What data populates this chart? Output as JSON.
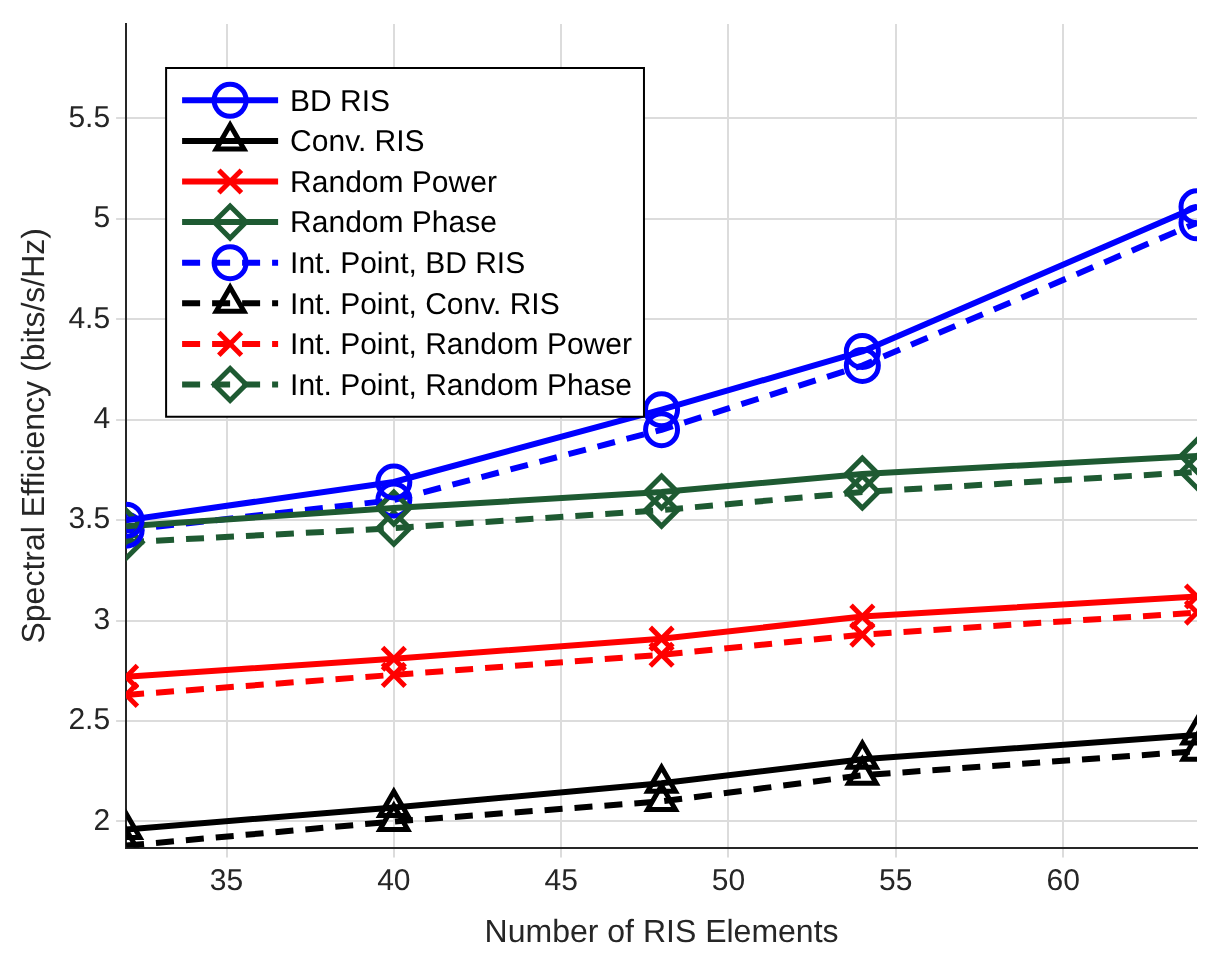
{
  "chart_data": {
    "type": "line",
    "xlabel": "Number of RIS Elements",
    "ylabel": "Spectral Efficiency (bits/s/Hz)",
    "x": [
      32,
      40,
      48,
      54,
      64
    ],
    "xlim": [
      32,
      64
    ],
    "xticks": [
      35,
      40,
      45,
      50,
      55,
      60
    ],
    "ylim": [
      1.87,
      5.97
    ],
    "yticks": [
      2,
      2.5,
      3,
      3.5,
      4,
      4.5,
      5,
      5.5
    ],
    "grid": true,
    "legend": "top left",
    "series": [
      {
        "name": "BD RIS",
        "color": "#0000ff",
        "marker": "circle",
        "line_style": "solid",
        "values": [
          3.5,
          3.69,
          4.05,
          4.34,
          5.06
        ]
      },
      {
        "name": "Conv. RIS",
        "color": "#000000",
        "marker": "triangle",
        "line_style": "solid",
        "values": [
          1.96,
          2.07,
          2.19,
          2.31,
          2.43
        ]
      },
      {
        "name": "Random Power",
        "color": "#ff0000",
        "marker": "cross",
        "line_style": "solid",
        "values": [
          2.72,
          2.81,
          2.91,
          3.02,
          3.12
        ]
      },
      {
        "name": "Random Phase",
        "color": "#1e5a32",
        "marker": "diamond",
        "line_style": "solid",
        "values": [
          3.47,
          3.56,
          3.64,
          3.73,
          3.82
        ]
      },
      {
        "name": "Int. Point, BD RIS",
        "color": "#0000ff",
        "marker": "circle",
        "line_style": "dashed",
        "values": [
          3.45,
          3.6,
          3.95,
          4.27,
          4.98
        ]
      },
      {
        "name": "Int. Point, Conv. RIS",
        "color": "#000000",
        "marker": "triangle",
        "line_style": "dashed",
        "values": [
          1.88,
          2.0,
          2.1,
          2.23,
          2.35
        ]
      },
      {
        "name": "Int. Point, Random Power",
        "color": "#ff0000",
        "marker": "cross",
        "line_style": "dashed",
        "values": [
          2.63,
          2.73,
          2.83,
          2.93,
          3.04
        ]
      },
      {
        "name": "Int. Point, Random Phase",
        "color": "#1e5a32",
        "marker": "diamond",
        "line_style": "dashed",
        "values": [
          3.39,
          3.46,
          3.55,
          3.64,
          3.74
        ]
      }
    ]
  }
}
